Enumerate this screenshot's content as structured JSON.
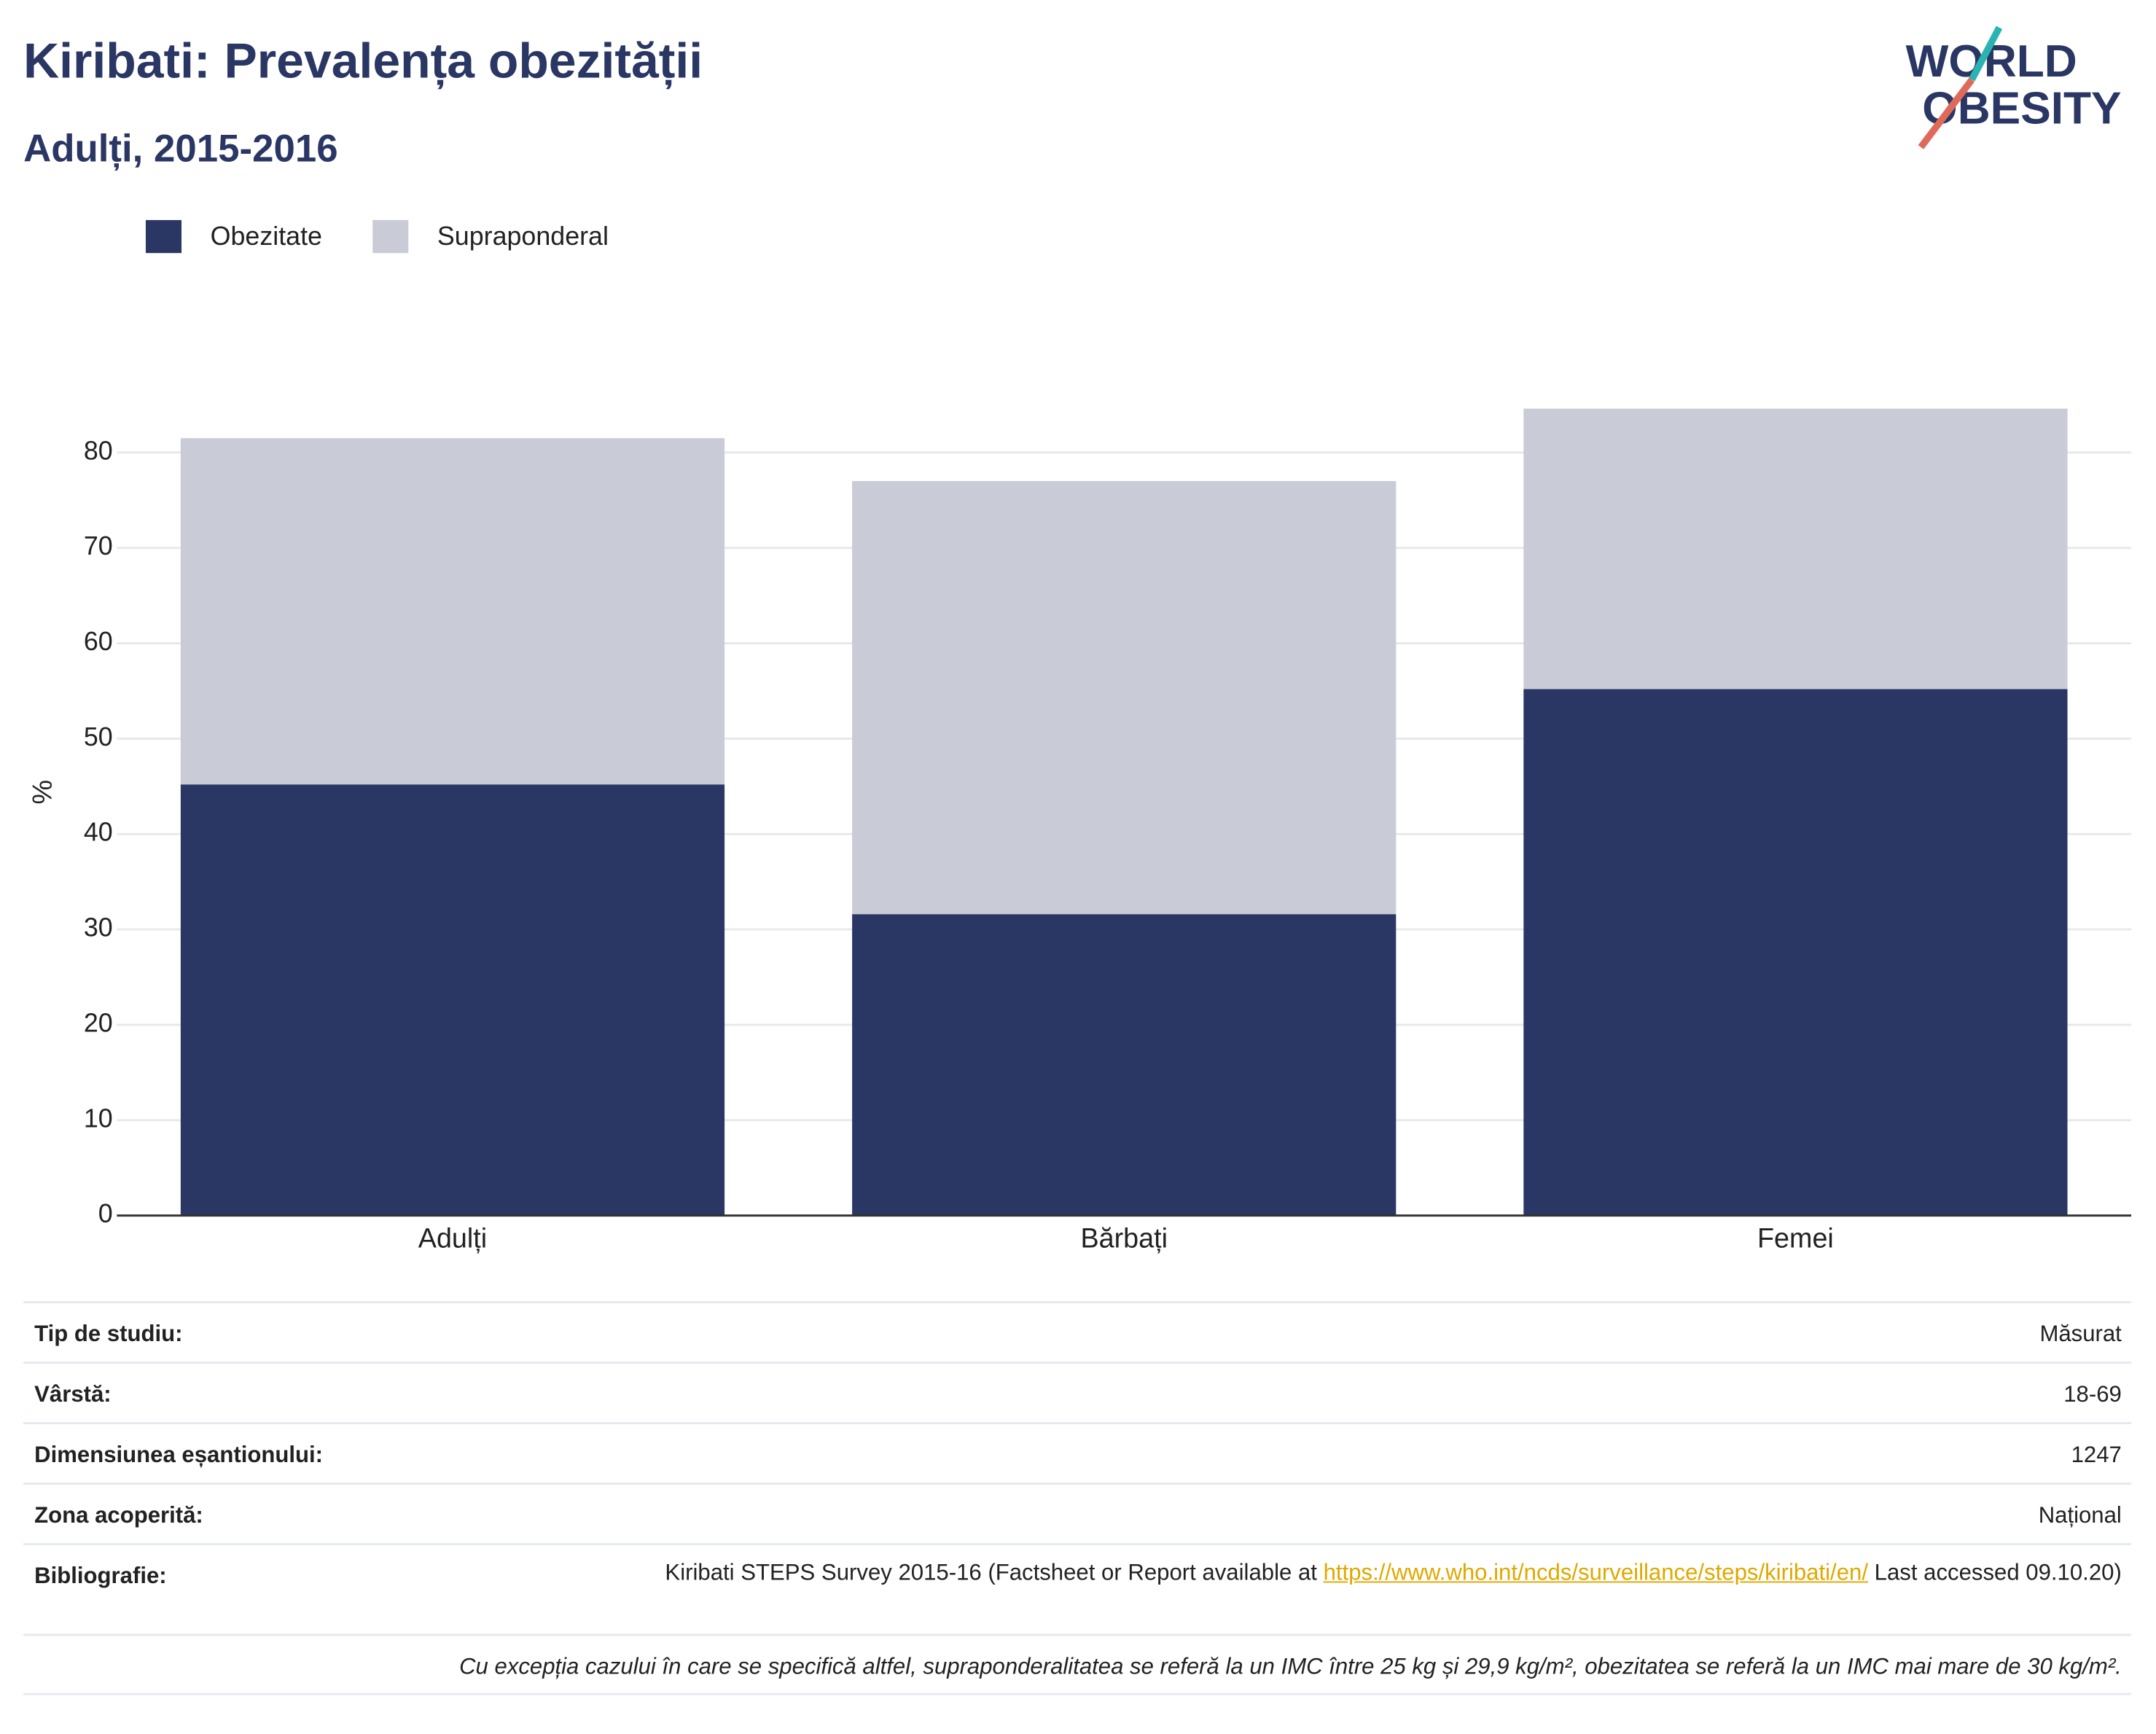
{
  "header": {
    "title": "Kiribati: Prevalența obezității",
    "subtitle": "Adulți, 2015-2016",
    "logo": [
      "WORLD",
      "OBESITY"
    ]
  },
  "chart_data": {
    "type": "stacked-bar",
    "ylabel": "%",
    "categories": [
      "Adulți",
      "Bărbați",
      "Femei"
    ],
    "series": [
      {
        "name": "Obezitate",
        "color": "#2a3663",
        "values": [
          45.2,
          31.6,
          55.2
        ]
      },
      {
        "name": "Supraponderal",
        "color": "#c9cbd6",
        "values": [
          36.3,
          45.4,
          29.4
        ]
      }
    ],
    "ylim": [
      0,
      88.8
    ],
    "yticks": [
      0,
      10,
      20,
      30,
      40,
      50,
      60,
      70,
      80
    ],
    "grid": true,
    "legend": "top-left"
  },
  "table": {
    "rows": [
      [
        "Tip de studiu:",
        "Măsurat"
      ],
      [
        "Vârstă:",
        "18-69"
      ],
      [
        "Dimensiunea eșantionului:",
        "1247"
      ],
      [
        "Zona acoperită:",
        "Național"
      ]
    ],
    "bibliography": {
      "label": "Bibliografie:",
      "before": "Kiribati STEPS Survey 2015-16 (Factsheet or Report available at",
      "link": "https://www.who.int/ncds/surveillance/steps/kiribati/en/",
      "after": "Last accessed 09.10.20)"
    },
    "footnote": "Cu excepția cazului în care se specifică altfel, supraponderalitatea se referă la un IMC între 25 kg și 29,9 kg/m², obezitatea se referă la un IMC mai mare de 30 kg/m²."
  }
}
